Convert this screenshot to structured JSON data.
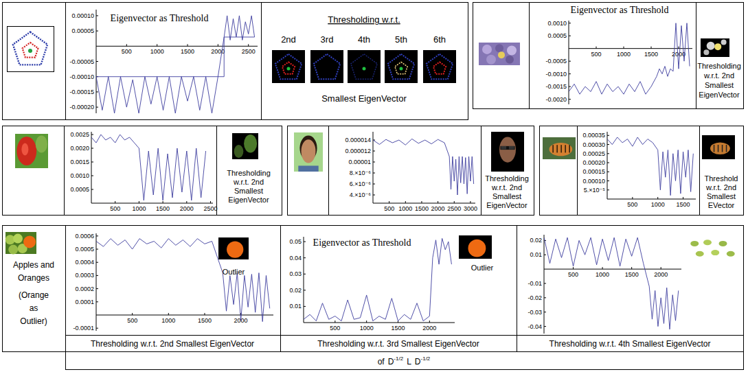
{
  "chart_data": [
    {
      "type": "line",
      "title": "Eigenvector as Threshold",
      "xlim": [
        0,
        2650
      ],
      "xticks": [
        500,
        1000,
        1500,
        2000,
        2500
      ],
      "ylim": [
        -0.00022,
        0.00012
      ],
      "yticks": [
        {
          "value": 0.0001,
          "label": "0.00010"
        },
        5e-05,
        -5e-05,
        {
          "value": -0.0001,
          "label": "-0.00010"
        },
        -0.00015,
        {
          "value": -0.0002,
          "label": "-0.00020"
        }
      ],
      "series": [
        {
          "color": "#3d3d9e",
          "line_style": "solid",
          "x": [
            0,
            100,
            200,
            300,
            400,
            500,
            600,
            700,
            800,
            900,
            1000,
            1100,
            1200,
            1300,
            1400,
            1500,
            1600,
            1700,
            1800,
            1900,
            2000,
            2100,
            2150,
            2200,
            2250,
            2300,
            2350,
            2400,
            2450,
            2500,
            2550,
            2600
          ],
          "values": [
            -0.0001,
            -0.00021,
            -0.0001,
            -0.00022,
            -0.0001,
            -0.0002,
            -0.00011,
            -0.00022,
            -0.0001,
            -0.00019,
            -0.0001,
            -0.00021,
            -0.0001,
            -0.00022,
            -0.0001,
            -0.00018,
            -0.0001,
            -0.00021,
            -0.0001,
            -0.00022,
            -0.0001,
            3e-05,
            0.0001,
            2e-05,
            9e-05,
            3e-05,
            0.0001,
            2e-05,
            8e-05,
            4e-05,
            0.0001,
            3e-05
          ]
        },
        {
          "color": "#3d3d9e",
          "line_style": "solid",
          "x": [
            0,
            2100,
            2100,
            2600
          ],
          "values": [
            -0.0001,
            -0.0001,
            3e-05,
            3e-05
          ]
        }
      ]
    },
    {
      "type": "line",
      "title": "Eigenvector as Threshold",
      "annotations": [
        "Thresholding",
        "w.r.t. 2nd",
        "Smallest",
        "EigenVector"
      ],
      "xlim": [
        0,
        2250
      ],
      "xticks": [
        500,
        1000,
        1500,
        2000
      ],
      "ylim": [
        -0.0022,
        0.0011
      ],
      "yticks": [
        {
          "value": 0.001,
          "label": "0.0010"
        },
        0.0005,
        -0.0005,
        {
          "value": -0.001,
          "label": "-0.0010"
        },
        -0.0015,
        {
          "value": -0.002,
          "label": "-0.0020"
        }
      ],
      "series": [
        {
          "color": "#3d3d9e",
          "line_style": "solid",
          "x": [
            0,
            100,
            200,
            300,
            400,
            500,
            600,
            700,
            800,
            900,
            1000,
            1100,
            1200,
            1300,
            1400,
            1500,
            1600,
            1650,
            1700,
            1750,
            1800,
            1850,
            1900,
            1950,
            2000,
            2050,
            2100,
            2150,
            2200
          ],
          "values": [
            -0.0017,
            -0.0014,
            -0.0018,
            -0.0015,
            -0.0017,
            -0.0013,
            -0.0018,
            -0.0014,
            -0.0017,
            -0.0015,
            -0.0018,
            -0.0014,
            -0.0017,
            -0.0013,
            -0.0018,
            -0.0015,
            -0.0011,
            -0.0008,
            -0.001,
            -0.0007,
            -0.0011,
            -0.0008,
            -0.0009,
            0.001,
            -0.0008,
            0.0009,
            -0.0005,
            0.001,
            -0.0007
          ]
        }
      ]
    },
    {
      "type": "line",
      "annotations": [
        "Thresholding",
        "w.r.t. 2nd",
        "Smallest",
        "EigenVector"
      ],
      "xlim": [
        0,
        2550
      ],
      "xticks": [
        500,
        1000,
        1500,
        2000,
        2500
      ],
      "ylim": [
        0,
        0.0026
      ],
      "yticks": [
        0.0025,
        {
          "value": 0.002,
          "label": "0.0020"
        },
        0.0015,
        {
          "value": 0.001,
          "label": "0.0010"
        },
        0.0005
      ],
      "series": [
        {
          "color": "#3d3d9e",
          "line_style": "solid",
          "x": [
            0,
            100,
            200,
            300,
            400,
            500,
            600,
            700,
            800,
            900,
            1000,
            1100,
            1200,
            1300,
            1400,
            1500,
            1600,
            1700,
            1800,
            1900,
            2000,
            2100,
            2200,
            2300,
            2400
          ],
          "values": [
            0.0024,
            0.0022,
            0.0025,
            0.0023,
            0.0024,
            0.0022,
            0.0025,
            0.0023,
            0.0024,
            0.0022,
            0.002,
            0.0001,
            0.0019,
            0.0003,
            0.002,
            0.0001,
            0.0018,
            0.0002,
            0.002,
            0.0004,
            0.0019,
            0.0001,
            0.002,
            0.0002,
            0.0019
          ]
        }
      ]
    },
    {
      "type": "line",
      "annotations": [
        "Thresholding",
        "w.r.t. 2nd",
        "Smallest",
        "EigenVector"
      ],
      "xlim": [
        0,
        3150
      ],
      "xticks": [
        500,
        1000,
        1500,
        2000,
        2500,
        3000
      ],
      "ylim": [
        2.5e-06,
        1.55e-05
      ],
      "yticks": [
        1.4e-05,
        1.2e-05,
        1e-05,
        {
          "value": 8e-06,
          "label": "8.×10⁻⁶"
        },
        {
          "value": 6e-06,
          "label": "6.×10⁻⁶"
        },
        {
          "value": 4e-06,
          "label": "4.×10⁻⁶"
        }
      ],
      "series": [
        {
          "color": "#3d3d9e",
          "line_style": "solid",
          "x": [
            0,
            200,
            400,
            600,
            800,
            1000,
            1200,
            1400,
            1600,
            1800,
            2000,
            2200,
            2350,
            2400,
            2450,
            2500,
            2550,
            2600,
            2650,
            2700,
            2750,
            2800,
            2850,
            2900,
            2950,
            3000,
            3050,
            3100
          ],
          "values": [
            1.4e-05,
            1.32e-05,
            1.41e-05,
            1.35e-05,
            1.4e-05,
            1.31e-05,
            1.42e-05,
            1.34e-05,
            1.4e-05,
            1.33e-05,
            1.41e-05,
            1.35e-05,
            1.1e-05,
            5e-06,
            1.1e-05,
            6.5e-06,
            1.05e-05,
            4e-06,
            1.1e-05,
            6.2e-06,
            1.1e-05,
            6e-06,
            1.08e-05,
            4.2e-06,
            1.1e-05,
            6.5e-06,
            1.1e-05,
            6e-06
          ]
        }
      ]
    },
    {
      "type": "line",
      "annotations": [
        "Threshold",
        "w.r.t. 2nd",
        "Smallest",
        "EVector"
      ],
      "xlim": [
        0,
        1750
      ],
      "xticks": [
        500,
        1000,
        1500
      ],
      "ylim": [
        0,
        0.00037
      ],
      "yticks": [
        0.00035,
        {
          "value": 0.0003,
          "label": "0.00030"
        },
        0.00025,
        {
          "value": 0.0002,
          "label": "0.00020"
        },
        0.00015,
        {
          "value": 0.0001,
          "label": "0.00010"
        },
        {
          "value": 5e-05,
          "label": "5.×10⁻⁵"
        }
      ],
      "series": [
        {
          "color": "#3d3d9e",
          "line_style": "solid",
          "x": [
            0,
            100,
            200,
            300,
            400,
            500,
            600,
            700,
            800,
            900,
            1000,
            1050,
            1100,
            1150,
            1200,
            1250,
            1300,
            1350,
            1400,
            1450,
            1500,
            1550,
            1600,
            1650,
            1700
          ],
          "values": [
            0.00033,
            0.0003,
            0.00034,
            0.00031,
            0.00033,
            0.00029,
            0.00034,
            0.0003,
            0.00033,
            0.00031,
            0.00027,
            5e-05,
            0.00026,
            0.00012,
            0.00027,
            2e-05,
            0.00025,
            0.0001,
            0.00027,
            3e-05,
            0.00026,
            0.00012,
            0.00027,
            4e-05,
            0.00025
          ]
        }
      ]
    },
    {
      "type": "line",
      "annotations": [
        "Outlier"
      ],
      "xlim": [
        0,
        2450
      ],
      "xticks": [
        500,
        1000,
        1500,
        2000
      ],
      "ylim": [
        -0.00012,
        0.00062
      ],
      "yticks": [
        0.0006,
        0.0005,
        0.0004,
        0.0003,
        0.0002,
        0.0001,
        -0.0001
      ],
      "series": [
        {
          "color": "#3d3d9e",
          "line_style": "solid",
          "x": [
            0,
            100,
            200,
            300,
            400,
            500,
            600,
            700,
            800,
            900,
            1000,
            1100,
            1200,
            1300,
            1400,
            1500,
            1600,
            1750,
            1800,
            1850,
            1900,
            1950,
            2000,
            2050,
            2100,
            2150,
            2200,
            2250,
            2300,
            2350,
            2400
          ],
          "values": [
            0.00056,
            0.00052,
            0.00058,
            0.00053,
            0.00057,
            0.0005,
            0.00058,
            0.00054,
            0.00056,
            0.00051,
            0.00058,
            0.00053,
            0.00057,
            0.00052,
            0.00058,
            0.00054,
            0.00056,
            0.00032,
            3e-05,
            0.0003,
            8e-05,
            0.00032,
            -4e-05,
            0.0003,
            6e-05,
            0.00031,
            2e-05,
            0.00032,
            -5e-05,
            0.0003,
            5e-05
          ]
        }
      ]
    },
    {
      "type": "line",
      "title": "Eigenvector as Threshold",
      "annotations": [
        "Outlier"
      ],
      "xlim": [
        0,
        2400
      ],
      "xticks": [
        500,
        1000,
        1500,
        2000
      ],
      "ylim": [
        0,
        0.053
      ],
      "yticks": [
        0.05,
        0.04,
        0.03,
        0.02,
        0.01
      ],
      "series": [
        {
          "color": "#3d3d9e",
          "line_style": "solid",
          "x": [
            0,
            100,
            200,
            300,
            400,
            500,
            600,
            700,
            800,
            900,
            1000,
            1100,
            1200,
            1300,
            1400,
            1500,
            1600,
            1700,
            1800,
            1900,
            2000,
            2050,
            2100,
            2150,
            2200,
            2250,
            2300,
            2350
          ],
          "values": [
            0.002,
            0.005,
            0.001,
            0.012,
            0.002,
            0.004,
            0.001,
            0.014,
            0.002,
            0.003,
            0.017,
            0.001,
            0.004,
            0.002,
            0.015,
            0.001,
            0.005,
            0.002,
            0.012,
            0.001,
            0.004,
            0.04,
            0.051,
            0.036,
            0.052,
            0.045,
            0.05,
            0.036
          ]
        }
      ]
    },
    {
      "type": "line",
      "xlim": [
        0,
        2350
      ],
      "xticks": [
        500,
        1000,
        1500,
        2000
      ],
      "ylim": [
        -0.045,
        0.024
      ],
      "yticks": [
        0.02,
        0.01,
        -0.01,
        -0.02,
        -0.03,
        -0.04
      ],
      "series": [
        {
          "color": "#3d3d9e",
          "line_style": "solid",
          "x": [
            0,
            100,
            200,
            300,
            400,
            500,
            600,
            700,
            800,
            900,
            1000,
            1100,
            1200,
            1300,
            1400,
            1500,
            1600,
            1700,
            1800,
            1850,
            1900,
            1950,
            2000,
            2050,
            2100,
            2150,
            2200,
            2250,
            2300
          ],
          "values": [
            0.022,
            0.004,
            0.021,
            0.008,
            0.022,
            0.002,
            0.02,
            0.01,
            0.022,
            0.003,
            0.021,
            0.006,
            0.022,
            0.002,
            0.021,
            0.009,
            0.022,
            0.004,
            -0.012,
            -0.035,
            -0.015,
            -0.04,
            -0.02,
            -0.038,
            -0.013,
            -0.042,
            -0.018,
            -0.036,
            -0.015
          ]
        }
      ]
    }
  ],
  "figure": {
    "eigen_panel": {
      "heading": "Thresholding w.r.t.",
      "orders": [
        "2nd",
        "3rd",
        "4th",
        "5th",
        "6th"
      ],
      "footer": "Smallest EigenVector"
    },
    "row3": {
      "label": [
        "Apples and",
        "Oranges",
        "(Orange",
        "as",
        "Outlier)"
      ],
      "captions": [
        "Thresholding w.r.t. 2nd Smallest EigenVector",
        "Thresholding w.r.t. 3rd Smallest EigenVector",
        "Thresholding w.r.t. 4th Smallest EigenVector"
      ]
    },
    "footer": {
      "prefix": "of",
      "terms": [
        {
          "base": "D",
          "sup": "-1/2"
        },
        {
          "base": "L"
        },
        {
          "base": "D",
          "sup": "-1/2"
        }
      ]
    }
  }
}
